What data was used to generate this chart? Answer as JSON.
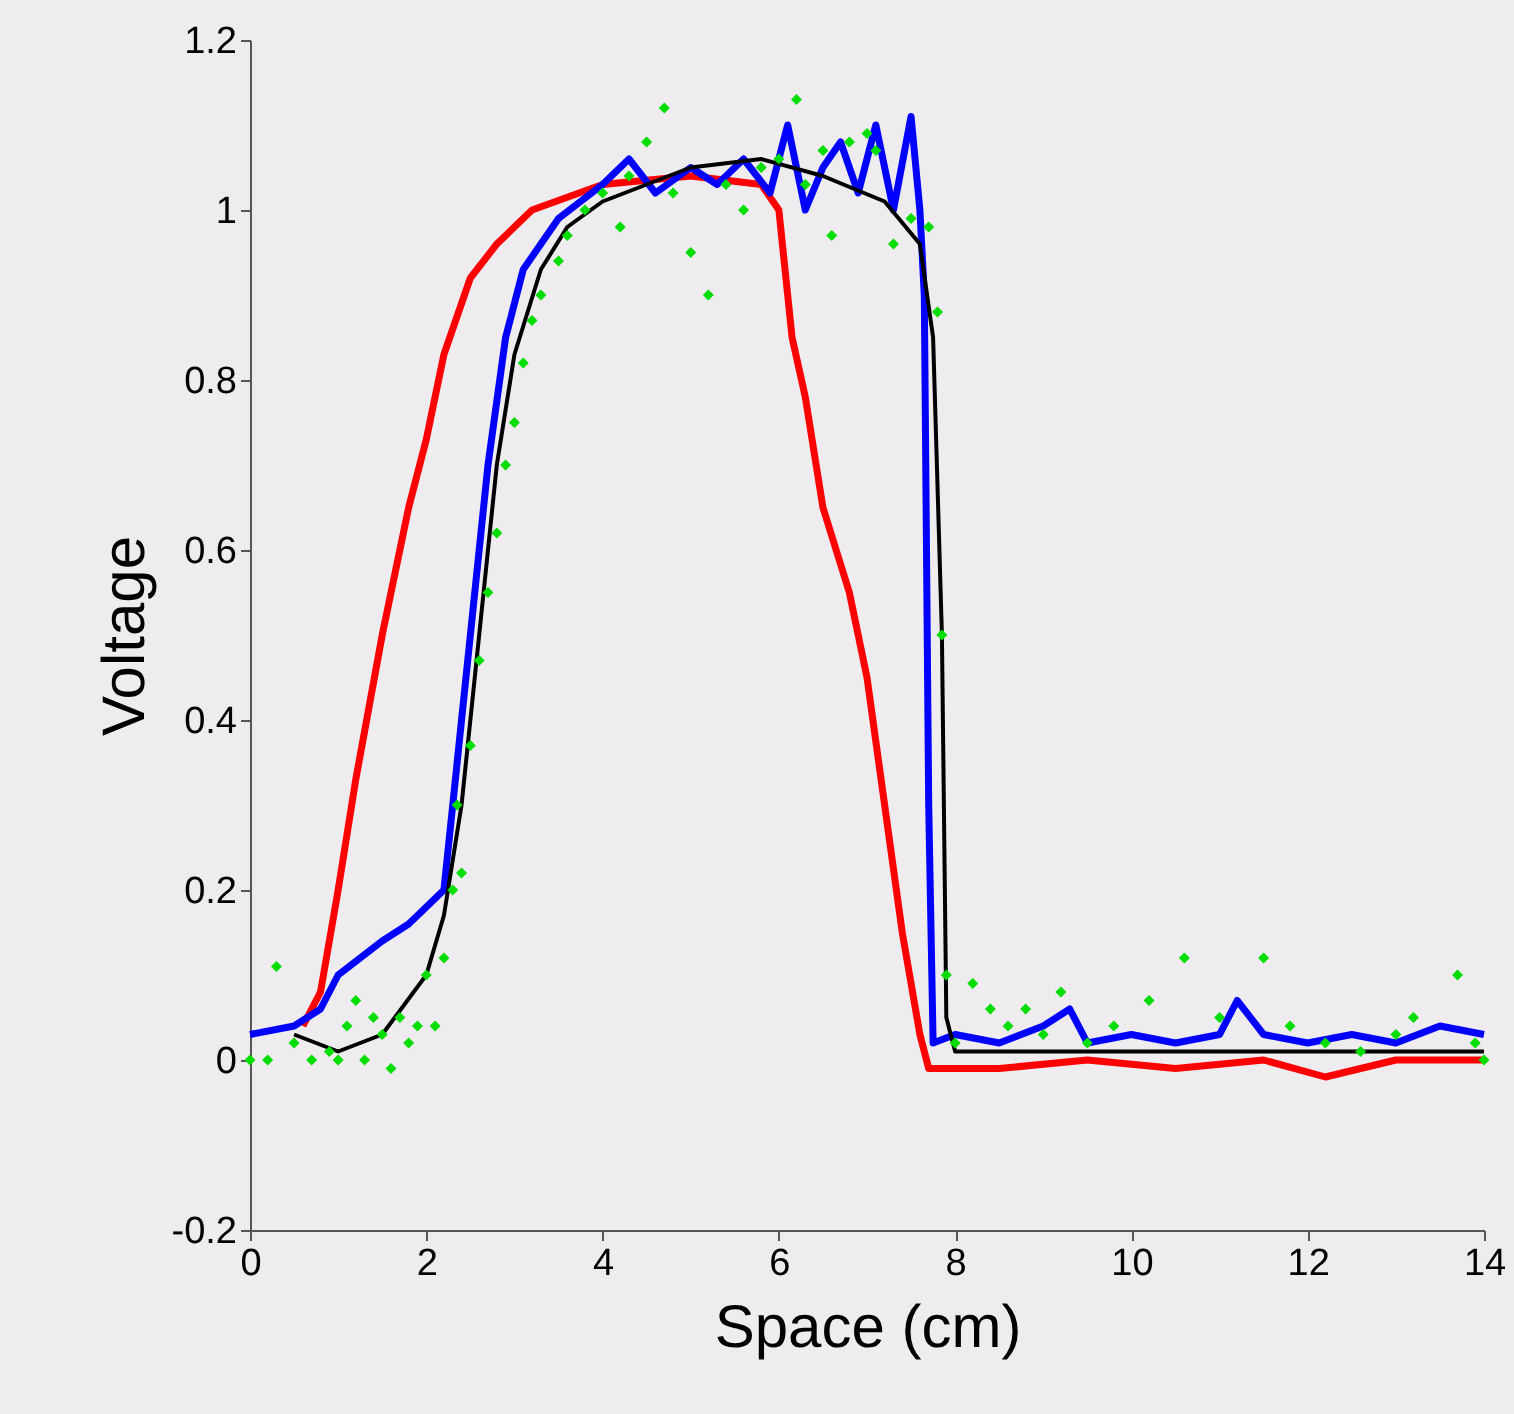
{
  "chart_data": {
    "type": "line",
    "xlabel": "Space (cm)",
    "ylabel": "Voltage",
    "xlim": [
      0,
      14
    ],
    "ylim": [
      -0.2,
      1.2
    ],
    "xticks": [
      0,
      2,
      4,
      6,
      8,
      10,
      12,
      14
    ],
    "yticks": [
      -0.2,
      0,
      0.2,
      0.4,
      0.6,
      0.8,
      1,
      1.2
    ],
    "grid": false,
    "series": [
      {
        "type": "line",
        "color": "#ff0000",
        "x": [
          0.6,
          0.8,
          1.0,
          1.2,
          1.5,
          1.8,
          2.0,
          2.2,
          2.5,
          2.8,
          3.2,
          4.0,
          5.0,
          5.8,
          6.0,
          6.15,
          6.3,
          6.5,
          6.8,
          7.0,
          7.2,
          7.4,
          7.6,
          7.7,
          8.5,
          9.5,
          10.5,
          11.5,
          12.2,
          13,
          14
        ],
        "values": [
          0.04,
          0.08,
          0.2,
          0.33,
          0.5,
          0.65,
          0.73,
          0.83,
          0.92,
          0.96,
          1.0,
          1.03,
          1.04,
          1.03,
          1.0,
          0.85,
          0.78,
          0.65,
          0.55,
          0.45,
          0.3,
          0.15,
          0.03,
          -0.01,
          -0.01,
          0.0,
          -0.01,
          0.0,
          -0.02,
          0.0,
          0.0
        ]
      },
      {
        "type": "line",
        "color": "#0000ff",
        "x": [
          0,
          0.5,
          0.8,
          1.0,
          1.5,
          1.8,
          2.0,
          2.2,
          2.3,
          2.5,
          2.7,
          2.9,
          3.1,
          3.5,
          4.0,
          4.3,
          4.6,
          5.0,
          5.3,
          5.6,
          5.9,
          6.1,
          6.3,
          6.5,
          6.7,
          6.9,
          7.1,
          7.3,
          7.5,
          7.6,
          7.65,
          7.7,
          7.75,
          8.0,
          8.5,
          9.0,
          9.3,
          9.5,
          10.0,
          10.5,
          11.0,
          11.2,
          11.5,
          12.0,
          12.5,
          13.0,
          13.5,
          14
        ],
        "values": [
          0.03,
          0.04,
          0.06,
          0.1,
          0.14,
          0.16,
          0.18,
          0.2,
          0.3,
          0.5,
          0.7,
          0.85,
          0.93,
          0.99,
          1.03,
          1.06,
          1.02,
          1.05,
          1.03,
          1.06,
          1.02,
          1.1,
          1.0,
          1.05,
          1.08,
          1.02,
          1.1,
          1.0,
          1.11,
          1.0,
          0.9,
          0.3,
          0.02,
          0.03,
          0.02,
          0.04,
          0.06,
          0.02,
          0.03,
          0.02,
          0.03,
          0.07,
          0.03,
          0.02,
          0.03,
          0.02,
          0.04,
          0.03
        ]
      },
      {
        "type": "line",
        "color": "#000000",
        "x": [
          0.5,
          1.0,
          1.5,
          2.0,
          2.2,
          2.4,
          2.6,
          2.8,
          3.0,
          3.3,
          3.6,
          4.0,
          5.0,
          5.8,
          6.5,
          7.2,
          7.6,
          7.75,
          7.85,
          7.9,
          8.0,
          9,
          10,
          11,
          12,
          13,
          14
        ],
        "values": [
          0.03,
          0.01,
          0.03,
          0.1,
          0.17,
          0.3,
          0.5,
          0.7,
          0.83,
          0.93,
          0.98,
          1.01,
          1.05,
          1.06,
          1.04,
          1.01,
          0.96,
          0.85,
          0.5,
          0.05,
          0.01,
          0.01,
          0.01,
          0.01,
          0.01,
          0.01,
          0.01
        ]
      },
      {
        "type": "scatter",
        "color": "#00dd00",
        "marker": "diamond",
        "x": [
          0,
          0.2,
          0.3,
          0.5,
          0.7,
          0.9,
          1.0,
          1.1,
          1.2,
          1.3,
          1.4,
          1.5,
          1.6,
          1.7,
          1.8,
          1.9,
          2.0,
          2.1,
          2.2,
          2.3,
          2.35,
          2.4,
          2.5,
          2.6,
          2.7,
          2.8,
          2.9,
          3.0,
          3.1,
          3.2,
          3.3,
          3.5,
          3.6,
          3.8,
          4.0,
          4.2,
          4.3,
          4.5,
          4.7,
          4.8,
          5.0,
          5.2,
          5.4,
          5.6,
          5.8,
          6.0,
          6.2,
          6.3,
          6.5,
          6.6,
          6.8,
          7.0,
          7.1,
          7.3,
          7.5,
          7.7,
          7.8,
          7.85,
          7.9,
          8.0,
          8.2,
          8.4,
          8.6,
          8.8,
          9.0,
          9.2,
          9.5,
          9.8,
          10.2,
          10.6,
          11.0,
          11.5,
          11.8,
          12.2,
          12.6,
          13.0,
          13.2,
          13.7,
          13.9,
          14.0
        ],
        "values": [
          0.0,
          0.0,
          0.11,
          0.02,
          0.0,
          0.01,
          0.0,
          0.04,
          0.07,
          0.0,
          0.05,
          0.03,
          -0.01,
          0.05,
          0.02,
          0.04,
          0.1,
          0.04,
          0.12,
          0.2,
          0.3,
          0.22,
          0.37,
          0.47,
          0.55,
          0.62,
          0.7,
          0.75,
          0.82,
          0.87,
          0.9,
          0.94,
          0.97,
          1.0,
          1.02,
          0.98,
          1.04,
          1.08,
          1.12,
          1.02,
          0.95,
          0.9,
          1.03,
          1.0,
          1.05,
          1.06,
          1.13,
          1.03,
          1.07,
          0.97,
          1.08,
          1.09,
          1.07,
          0.96,
          0.99,
          0.98,
          0.88,
          0.5,
          0.1,
          0.02,
          0.09,
          0.06,
          0.04,
          0.06,
          0.03,
          0.08,
          0.02,
          0.04,
          0.07,
          0.12,
          0.05,
          0.12,
          0.04,
          0.02,
          0.01,
          0.03,
          0.05,
          0.1,
          0.02,
          0.0
        ]
      }
    ]
  }
}
